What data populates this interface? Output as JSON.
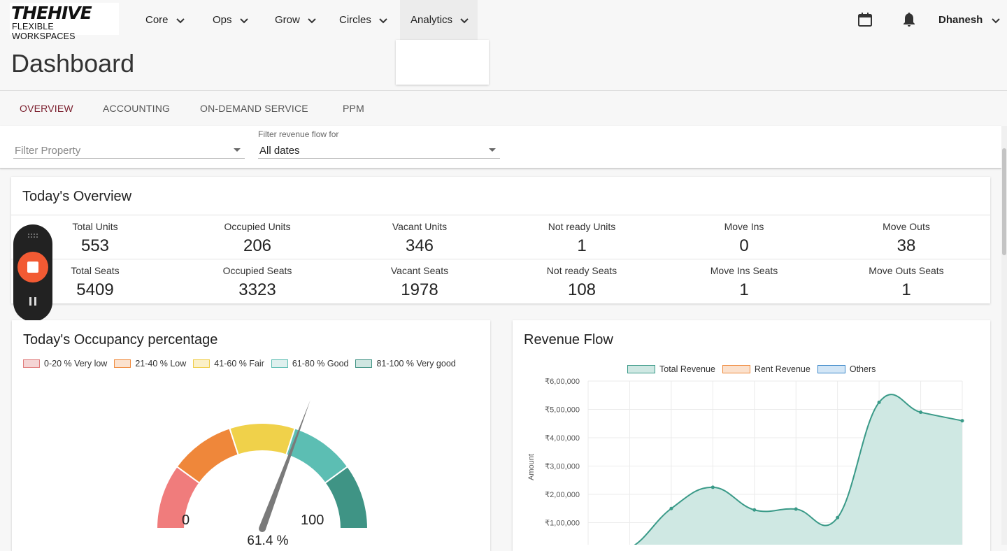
{
  "header": {
    "logo_top": "THEHIVE",
    "logo_bottom": "FLEXIBLE WORKSPACES",
    "nav": [
      {
        "label": "Core"
      },
      {
        "label": "Ops"
      },
      {
        "label": "Grow"
      },
      {
        "label": "Circles"
      },
      {
        "label": "Analytics"
      }
    ],
    "user_name": "Dhanesh",
    "icons": {
      "calendar": "calendar-icon",
      "bell": "bell-icon"
    }
  },
  "page": {
    "title": "Dashboard",
    "tabs": [
      {
        "label": "OVERVIEW",
        "active": true
      },
      {
        "label": "ACCOUNTING"
      },
      {
        "label": "ON-DEMAND SERVICE"
      },
      {
        "label": "PPM"
      }
    ]
  },
  "filters": {
    "property_placeholder": "Filter Property",
    "revenue_label": "Filter revenue flow for",
    "revenue_value": "All dates"
  },
  "overview": {
    "title": "Today's Overview",
    "units": [
      {
        "label": "Total Units",
        "value": "553"
      },
      {
        "label": "Occupied Units",
        "value": "206"
      },
      {
        "label": "Vacant Units",
        "value": "346"
      },
      {
        "label": "Not ready Units",
        "value": "1"
      },
      {
        "label": "Move Ins",
        "value": "0"
      },
      {
        "label": "Move Outs",
        "value": "38"
      }
    ],
    "seats": [
      {
        "label": "Total Seats",
        "value": "5409"
      },
      {
        "label": "Occupied Seats",
        "value": "3323"
      },
      {
        "label": "Vacant Seats",
        "value": "1978"
      },
      {
        "label": "Not ready Seats",
        "value": "108"
      },
      {
        "label": "Move Ins Seats",
        "value": "1"
      },
      {
        "label": "Move Outs Seats",
        "value": "1"
      }
    ]
  },
  "occupancy": {
    "title": "Today's Occupancy percentage",
    "legend": [
      {
        "label": "0-20 % Very low",
        "fill": "#f4d4d4",
        "stroke": "#e07b7b"
      },
      {
        "label": "21-40 % Low",
        "fill": "#fbe2cf",
        "stroke": "#ef8a3c"
      },
      {
        "label": "41-60 % Fair",
        "fill": "#fbf0c8",
        "stroke": "#efcc45"
      },
      {
        "label": "61-80 % Good",
        "fill": "#dff0ee",
        "stroke": "#5bbcb1"
      },
      {
        "label": "81-100 % Very good",
        "fill": "#cfe6e1",
        "stroke": "#3f9283"
      }
    ],
    "min_label": "0",
    "max_label": "100",
    "value_label": "61.4 %",
    "value": 61.4,
    "segment_colors": [
      "#f07c7c",
      "#ef873a",
      "#f0d14a",
      "#5cbeb3",
      "#3f9485"
    ]
  },
  "revenue": {
    "title": "Revenue Flow",
    "legend": [
      {
        "label": "Total Revenue",
        "fill": "#cfe8e3",
        "stroke": "#3a9a88"
      },
      {
        "label": "Rent Revenue",
        "fill": "#fbe1cd",
        "stroke": "#ef8a3c"
      },
      {
        "label": "Others",
        "fill": "#d3e6f6",
        "stroke": "#3b87c8"
      }
    ],
    "ylabel": "Amount",
    "yticks": [
      "₹6,00,000",
      "₹5,00,000",
      "₹4,00,000",
      "₹3,00,000",
      "₹2,00,000",
      "₹1,00,000"
    ]
  },
  "chart_data": {
    "type": "area",
    "title": "Revenue Flow",
    "xlabel": "",
    "ylabel": "Amount",
    "ylim": [
      0,
      600000
    ],
    "grid": true,
    "legend_position": "top",
    "series": [
      {
        "name": "Total Revenue",
        "values": [
          0,
          10000,
          150000,
          225000,
          145000,
          148000,
          118000,
          525000,
          490000,
          460000
        ]
      }
    ]
  },
  "recorder": {
    "stop_color": "#f25a33"
  }
}
